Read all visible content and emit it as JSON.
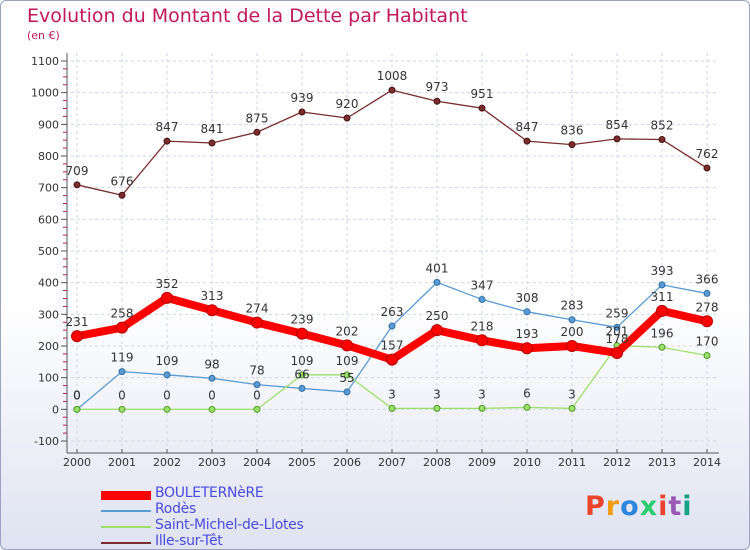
{
  "title": "Evolution du Montant de la Dette par Habitant",
  "unit_label": "(en €)",
  "logo": {
    "text": "Proxiti",
    "colors": [
      "#e8452c",
      "#f39c12",
      "#2e86de",
      "#2ecc71",
      "#e8452c",
      "#9b59b6",
      "#16a085"
    ]
  },
  "chart_data": {
    "type": "line",
    "x": [
      "2000",
      "2001",
      "2002",
      "2003",
      "2004",
      "2005",
      "2006",
      "2007",
      "2008",
      "2009",
      "2010",
      "2011",
      "2012",
      "2013",
      "2014"
    ],
    "ylim": [
      -100,
      1100
    ],
    "yticks": [
      -100,
      0,
      100,
      200,
      300,
      400,
      500,
      600,
      700,
      800,
      900,
      1000,
      1100
    ],
    "grid": true,
    "legend_position": "bottom-left",
    "series": [
      {
        "name": "BOULETERNèRE",
        "color": "#ff0000",
        "emphasis": true,
        "values": [
          231,
          258,
          352,
          313,
          274,
          239,
          202,
          157,
          250,
          218,
          193,
          200,
          178,
          311,
          278
        ],
        "labels": [
          "231",
          "258",
          "352",
          "313",
          "274",
          "239",
          "202",
          "157",
          "250",
          "218",
          "193",
          "200",
          "178",
          "311",
          "278"
        ]
      },
      {
        "name": "Rodès",
        "color": "#5b9bd5",
        "values": [
          0,
          119,
          109,
          98,
          78,
          66,
          55,
          263,
          401,
          347,
          308,
          283,
          259,
          393,
          366
        ],
        "labels": [
          "0",
          "119",
          "109",
          "98",
          "78",
          "66",
          "55",
          "263",
          "401",
          "347",
          "308",
          "283",
          "259",
          "393",
          "366"
        ]
      },
      {
        "name": "Saint-Michel-de-Llotes",
        "color": "#9ddf6b",
        "values": [
          0,
          0,
          0,
          0,
          0,
          109,
          109,
          3,
          3,
          3,
          6,
          3,
          201,
          196,
          170
        ],
        "labels": [
          "0",
          "0",
          "0",
          "0",
          "0",
          "109",
          "109",
          "3",
          "3",
          "3",
          "6",
          "3",
          "201",
          "196",
          "170"
        ]
      },
      {
        "name": "Ille-sur-Têt",
        "color": "#7b2c2c",
        "values": [
          709,
          676,
          847,
          841,
          875,
          939,
          920,
          1008,
          973,
          951,
          847,
          836,
          854,
          852,
          762
        ],
        "labels": [
          "709",
          "676",
          "847",
          "841",
          "875",
          "939",
          "920",
          "1008",
          "973",
          "951",
          "847",
          "836",
          "854",
          "852",
          "762"
        ]
      }
    ]
  }
}
